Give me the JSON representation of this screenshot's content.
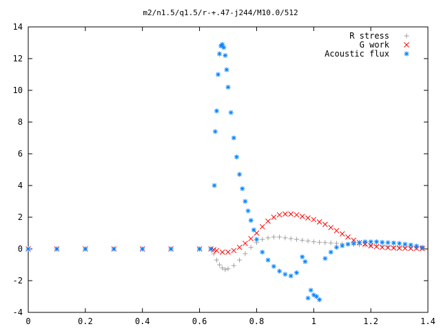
{
  "chart_data": {
    "type": "scatter",
    "title": "m2/n1.5/q1.5/r-+.47-j244/M10.0/512",
    "xlabel": "",
    "ylabel": "",
    "xlim": [
      0,
      1.4
    ],
    "ylim": [
      -4,
      14
    ],
    "xticks": [
      "0",
      "0.2",
      "0.4",
      "0.6",
      "0.8",
      "1",
      "1.2",
      "1.4"
    ],
    "yticks": [
      "-4",
      "-2",
      "0",
      "2",
      "4",
      "6",
      "8",
      "10",
      "12",
      "14"
    ],
    "grid": false,
    "legend_position": "top-right",
    "series": [
      {
        "name": "R stress",
        "marker": "+",
        "color": "#a0a0a0",
        "x": [
          0.0,
          0.1,
          0.2,
          0.3,
          0.4,
          0.5,
          0.6,
          0.64,
          0.65,
          0.66,
          0.67,
          0.68,
          0.69,
          0.7,
          0.72,
          0.74,
          0.76,
          0.78,
          0.8,
          0.82,
          0.84,
          0.86,
          0.88,
          0.9,
          0.92,
          0.94,
          0.96,
          0.98,
          1.0,
          1.02,
          1.04,
          1.06,
          1.08,
          1.1,
          1.12,
          1.14,
          1.16,
          1.18,
          1.2,
          1.22,
          1.24,
          1.26,
          1.28,
          1.3,
          1.32,
          1.34,
          1.36,
          1.38
        ],
        "y": [
          0,
          0,
          0,
          0,
          0,
          0,
          0,
          0,
          -0.3,
          -0.7,
          -1.0,
          -1.2,
          -1.3,
          -1.25,
          -1.05,
          -0.7,
          -0.3,
          0.1,
          0.4,
          0.6,
          0.7,
          0.75,
          0.75,
          0.7,
          0.65,
          0.6,
          0.55,
          0.5,
          0.45,
          0.42,
          0.4,
          0.38,
          0.35,
          0.32,
          0.3,
          0.28,
          0.26,
          0.24,
          0.22,
          0.2,
          0.18,
          0.16,
          0.14,
          0.12,
          0.1,
          0.08,
          0.06,
          0.05
        ]
      },
      {
        "name": "G work",
        "marker": "x",
        "color": "#ff0000",
        "x": [
          0.0,
          0.1,
          0.2,
          0.3,
          0.4,
          0.5,
          0.6,
          0.64,
          0.65,
          0.66,
          0.68,
          0.7,
          0.72,
          0.74,
          0.76,
          0.78,
          0.8,
          0.82,
          0.84,
          0.86,
          0.88,
          0.9,
          0.92,
          0.94,
          0.96,
          0.98,
          1.0,
          1.02,
          1.04,
          1.06,
          1.08,
          1.1,
          1.12,
          1.14,
          1.16,
          1.18,
          1.2,
          1.22,
          1.24,
          1.26,
          1.28,
          1.3,
          1.32,
          1.34,
          1.36,
          1.38
        ],
        "y": [
          0,
          0,
          0,
          0,
          0,
          0,
          0,
          0,
          -0.05,
          -0.1,
          -0.2,
          -0.2,
          -0.1,
          0.1,
          0.35,
          0.65,
          1.0,
          1.4,
          1.75,
          2.0,
          2.15,
          2.2,
          2.2,
          2.15,
          2.05,
          1.95,
          1.85,
          1.7,
          1.55,
          1.35,
          1.15,
          0.95,
          0.75,
          0.55,
          0.4,
          0.3,
          0.2,
          0.15,
          0.1,
          0.08,
          0.06,
          0.05,
          0.04,
          0.03,
          0.03,
          0.02
        ]
      },
      {
        "name": "Acoustic flux",
        "marker": "*",
        "color": "#0080ff",
        "x": [
          0.0,
          0.1,
          0.2,
          0.3,
          0.4,
          0.5,
          0.6,
          0.64,
          0.652,
          0.655,
          0.66,
          0.665,
          0.67,
          0.675,
          0.68,
          0.685,
          0.69,
          0.695,
          0.7,
          0.71,
          0.72,
          0.73,
          0.74,
          0.75,
          0.76,
          0.77,
          0.78,
          0.79,
          0.8,
          0.82,
          0.84,
          0.86,
          0.88,
          0.9,
          0.92,
          0.94,
          0.96,
          0.97,
          0.98,
          0.99,
          1.0,
          1.01,
          1.02,
          1.04,
          1.06,
          1.08,
          1.1,
          1.12,
          1.14,
          1.16,
          1.18,
          1.2,
          1.22,
          1.24,
          1.26,
          1.28,
          1.3,
          1.32,
          1.34,
          1.36,
          1.38
        ],
        "y": [
          0,
          0,
          0,
          0,
          0,
          0,
          0,
          0,
          4.0,
          7.4,
          8.7,
          11.0,
          12.3,
          12.8,
          12.9,
          12.7,
          12.2,
          11.3,
          10.2,
          8.6,
          7.0,
          5.8,
          4.7,
          3.8,
          3.0,
          2.4,
          1.8,
          1.2,
          0.6,
          -0.2,
          -0.7,
          -1.1,
          -1.4,
          -1.6,
          -1.7,
          -1.5,
          -0.5,
          -0.8,
          -3.1,
          -2.6,
          -2.9,
          -3.0,
          -3.2,
          -0.6,
          -0.2,
          0.1,
          0.2,
          0.3,
          0.35,
          0.4,
          0.45,
          0.45,
          0.45,
          0.42,
          0.4,
          0.38,
          0.35,
          0.3,
          0.25,
          0.18,
          0.1
        ]
      }
    ]
  }
}
